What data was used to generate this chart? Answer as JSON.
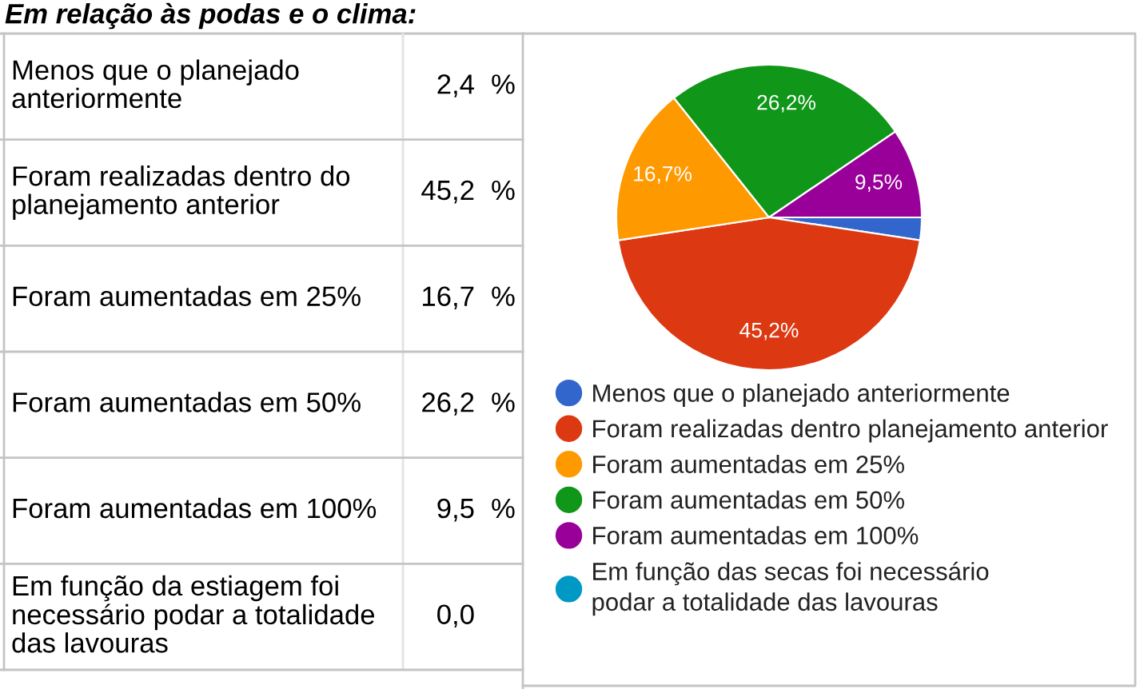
{
  "chart_data": [
    {
      "type": "other",
      "title": "Em relação às podas e o clima:",
      "categories": [
        "Menos que o planejado\nanteriormente",
        "Foram realizadas dentro do\nplanejamento anterior",
        "Foram aumentadas em 25%",
        "Foram aumentadas em 50%",
        "Foram aumentadas em 100%",
        "Em função da estiagem foi\nnecessário podar a totalidade\ndas lavouras"
      ],
      "value_labels": [
        "2,4 %",
        "45,2 %",
        "16,7 %",
        "26,2 %",
        "9,5 %",
        "0,0"
      ]
    },
    {
      "type": "pie",
      "categories": [
        "Menos que o planejado anteriormente",
        "Foram realizadas dentro planejamento anterior",
        "Foram aumentadas em 25%",
        "Foram aumentadas em 50%",
        "Foram aumentadas em 100%",
        "Em função das secas foi necessário\npodar a totalidade das lavouras"
      ],
      "values": [
        2.4,
        45.2,
        16.7,
        26.2,
        9.5,
        0
      ],
      "colors": [
        "#3366cc",
        "#dc3912",
        "#ff9900",
        "#109618",
        "#990099",
        "#0099c6"
      ],
      "value_labels": [
        null,
        "45,2%",
        "16,7%",
        "26,2%",
        "9,5%",
        null
      ],
      "legend": "bottom"
    }
  ]
}
